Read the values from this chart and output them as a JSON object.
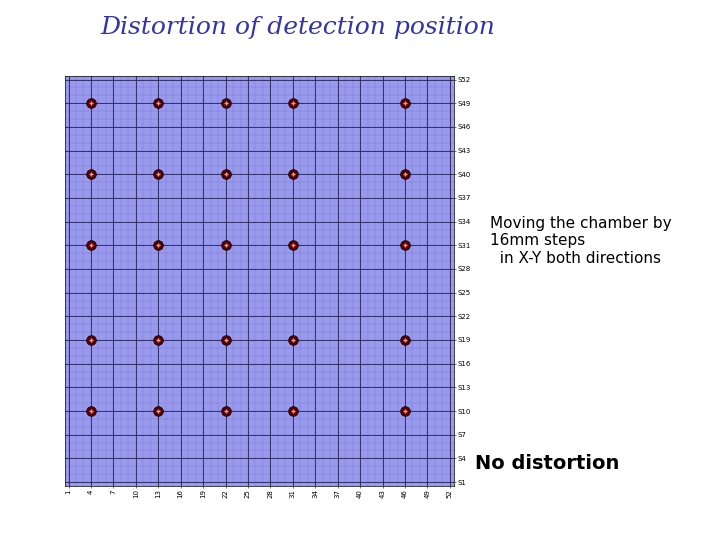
{
  "title": "Distortion of detection position",
  "title_color": "#3333aa",
  "title_fontsize": 18,
  "annotation_text": "Moving the chamber by\n16mm steps\n  in X-Y both directions",
  "annotation_fontsize": 11,
  "no_distortion_text": "No distortion",
  "no_distortion_fontsize": 14,
  "grid_bg_color": "#9999ee",
  "grid_line_color_fine": "#5555aa",
  "grid_line_color_coarse": "#222255",
  "x_min": 1,
  "x_max": 52,
  "y_min": 1,
  "y_max": 52,
  "x_ticks": [
    1,
    4,
    7,
    10,
    13,
    16,
    19,
    22,
    25,
    28,
    31,
    34,
    37,
    40,
    43,
    46,
    49,
    52
  ],
  "y_tick_labels": [
    "S1",
    "S4",
    "S7",
    "S10",
    "S13",
    "S16",
    "S19",
    "S22",
    "S25",
    "S28",
    "S31",
    "S34",
    "S37",
    "S40",
    "S43",
    "S46",
    "S49",
    "S52"
  ],
  "y_tick_vals": [
    1,
    4,
    7,
    10,
    13,
    16,
    19,
    22,
    25,
    28,
    31,
    34,
    37,
    40,
    43,
    46,
    49,
    52
  ],
  "marker_positions_x": [
    4,
    13,
    22,
    31,
    46
  ],
  "marker_positions_y": [
    10,
    19,
    31,
    40,
    49
  ],
  "marker_color_outer": "#550000",
  "marker_color_inner": "#aa3333"
}
